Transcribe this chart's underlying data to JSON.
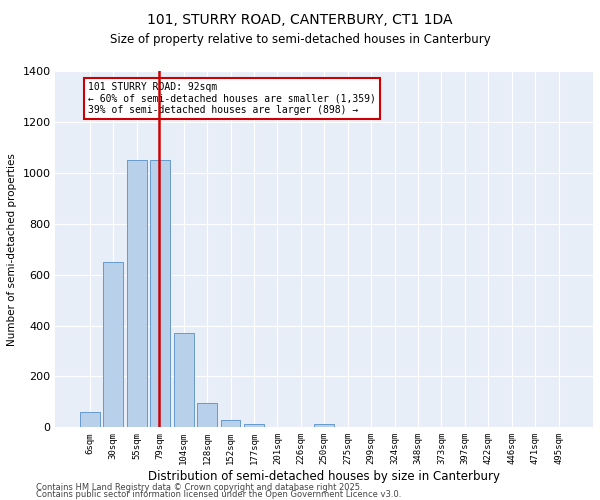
{
  "title1": "101, STURRY ROAD, CANTERBURY, CT1 1DA",
  "title2": "Size of property relative to semi-detached houses in Canterbury",
  "xlabel": "Distribution of semi-detached houses by size in Canterbury",
  "ylabel": "Number of semi-detached properties",
  "categories": [
    "6sqm",
    "30sqm",
    "55sqm",
    "79sqm",
    "104sqm",
    "128sqm",
    "152sqm",
    "177sqm",
    "201sqm",
    "226sqm",
    "250sqm",
    "275sqm",
    "299sqm",
    "324sqm",
    "348sqm",
    "373sqm",
    "397sqm",
    "422sqm",
    "446sqm",
    "471sqm",
    "495sqm"
  ],
  "values": [
    60,
    650,
    1050,
    1050,
    370,
    95,
    28,
    12,
    0,
    0,
    14,
    0,
    0,
    0,
    0,
    0,
    0,
    0,
    0,
    0,
    0
  ],
  "bar_color": "#b8d0ea",
  "bar_edgecolor": "#6699cc",
  "bg_color": "#e8eef8",
  "grid_color": "#ffffff",
  "vline_x": 2.97,
  "vline_color": "#cc0000",
  "annotation_title": "101 STURRY ROAD: 92sqm",
  "annotation_line1": "← 60% of semi-detached houses are smaller (1,359)",
  "annotation_line2": "39% of semi-detached houses are larger (898) →",
  "annotation_box_color": "#cc0000",
  "footer1": "Contains HM Land Registry data © Crown copyright and database right 2025.",
  "footer2": "Contains public sector information licensed under the Open Government Licence v3.0.",
  "ylim": [
    0,
    1400
  ],
  "yticks": [
    0,
    200,
    400,
    600,
    800,
    1000,
    1200,
    1400
  ]
}
